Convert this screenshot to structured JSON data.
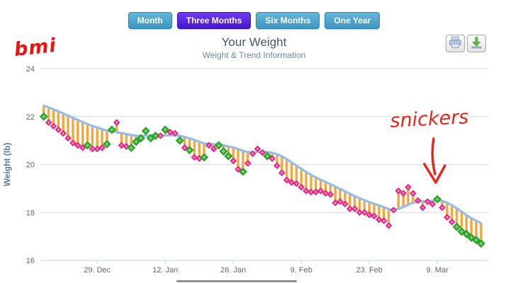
{
  "header": {
    "logo_text": "bmi",
    "title": "Your Weight",
    "subtitle": "Weight & Trend Information"
  },
  "range_buttons": [
    {
      "label": "Month",
      "active": false
    },
    {
      "label": "Three Months",
      "active": true
    },
    {
      "label": "Six Months",
      "active": false
    },
    {
      "label": "One Year",
      "active": false
    }
  ],
  "toolbar": {
    "print_icon": "printer",
    "download_icon": "download"
  },
  "annotation": {
    "text": "snickers",
    "points_to_date": "Mar 9"
  },
  "chart_data": {
    "type": "line",
    "title": "Your Weight",
    "subtitle": "Weight & Trend Information",
    "xlabel": "",
    "ylabel": "Weight (lb)",
    "ylim": [
      16,
      24
    ],
    "yticks": [
      16,
      18,
      20,
      22,
      24
    ],
    "grid": true,
    "legend": false,
    "xticks": [
      {
        "label": "29. Dec",
        "day_index": 11
      },
      {
        "label": "12. Jan",
        "day_index": 25
      },
      {
        "label": "26. Jan",
        "day_index": 39
      },
      {
        "label": "9. Feb",
        "day_index": 53
      },
      {
        "label": "23. Feb",
        "day_index": 67
      },
      {
        "label": "9. Mar",
        "day_index": 81
      }
    ],
    "x_dates": [
      "Dec 18",
      "Dec 19",
      "Dec 20",
      "Dec 21",
      "Dec 22",
      "Dec 23",
      "Dec 24",
      "Dec 25",
      "Dec 26",
      "Dec 27",
      "Dec 28",
      "Dec 29",
      "Dec 30",
      "Dec 31",
      "Jan 1",
      "Jan 2",
      "Jan 3",
      "Jan 4",
      "Jan 5",
      "Jan 6",
      "Jan 7",
      "Jan 8",
      "Jan 9",
      "Jan 10",
      "Jan 11",
      "Jan 12",
      "Jan 13",
      "Jan 14",
      "Jan 15",
      "Jan 16",
      "Jan 17",
      "Jan 18",
      "Jan 19",
      "Jan 20",
      "Jan 21",
      "Jan 22",
      "Jan 23",
      "Jan 24",
      "Jan 25",
      "Jan 26",
      "Jan 27",
      "Jan 28",
      "Jan 29",
      "Jan 30",
      "Jan 31",
      "Feb 1",
      "Feb 2",
      "Feb 3",
      "Feb 4",
      "Feb 5",
      "Feb 6",
      "Feb 7",
      "Feb 8",
      "Feb 9",
      "Feb 10",
      "Feb 11",
      "Feb 12",
      "Feb 13",
      "Feb 14",
      "Feb 15",
      "Feb 16",
      "Feb 17",
      "Feb 18",
      "Feb 19",
      "Feb 20",
      "Feb 21",
      "Feb 22",
      "Feb 23",
      "Feb 24",
      "Feb 25",
      "Feb 26",
      "Feb 27",
      "Feb 28",
      "Mar 1",
      "Mar 2",
      "Mar 3",
      "Mar 4",
      "Mar 5",
      "Mar 6",
      "Mar 7",
      "Mar 8",
      "Mar 9",
      "Mar 10",
      "Mar 11",
      "Mar 12",
      "Mar 13",
      "Mar 14",
      "Mar 15",
      "Mar 16",
      "Mar 17",
      "Mar 18"
    ],
    "series": [
      {
        "name": "daily-weight",
        "type": "scatter",
        "values": [
          22.0,
          21.75,
          21.6,
          21.45,
          21.3,
          21.1,
          20.9,
          20.8,
          20.7,
          20.8,
          20.65,
          20.65,
          20.7,
          20.85,
          21.45,
          21.75,
          20.8,
          20.75,
          20.7,
          20.95,
          21.1,
          21.4,
          21.1,
          21.2,
          21.2,
          21.45,
          21.35,
          21.3,
          21.0,
          20.7,
          20.6,
          20.3,
          20.25,
          20.3,
          20.8,
          20.65,
          20.8,
          20.55,
          20.35,
          20.15,
          19.8,
          19.7,
          20.05,
          20.45,
          20.65,
          20.5,
          20.35,
          20.25,
          19.95,
          19.65,
          19.35,
          19.25,
          19.2,
          19.05,
          18.9,
          18.85,
          18.85,
          18.9,
          18.8,
          18.75,
          18.4,
          18.45,
          18.35,
          18.15,
          18.15,
          18.0,
          18.0,
          17.9,
          17.85,
          17.7,
          17.65,
          17.45,
          18.1,
          18.9,
          18.8,
          19.05,
          18.8,
          18.5,
          18.2,
          18.45,
          18.35,
          18.55,
          18.2,
          17.8,
          17.6,
          17.4,
          17.2,
          17.1,
          16.95,
          16.85,
          16.7
        ],
        "point_colors": [
          "g",
          "p",
          "p",
          "p",
          "p",
          "p",
          "p",
          "p",
          "p",
          "g",
          "p",
          "p",
          "p",
          "g",
          "g",
          "p",
          "p",
          "p",
          "g",
          "g",
          "g",
          "g",
          "g",
          "g",
          "p",
          "g",
          "p",
          "p",
          "g",
          "p",
          "g",
          "p",
          "p",
          "g",
          "p",
          "p",
          "g",
          "g",
          "g",
          "p",
          "p",
          "g",
          "p",
          "p",
          "p",
          "p",
          "g",
          "p",
          "p",
          "p",
          "p",
          "p",
          "p",
          "p",
          "p",
          "p",
          "p",
          "p",
          "p",
          "p",
          "p",
          "p",
          "p",
          "p",
          "p",
          "p",
          "p",
          "p",
          "p",
          "p",
          "p",
          "p",
          "p",
          "p",
          "p",
          "p",
          "p",
          "p",
          "p",
          "p",
          "p",
          "g",
          "p",
          "p",
          "p",
          "g",
          "g",
          "g",
          "g",
          "g",
          "g"
        ]
      },
      {
        "name": "trend",
        "type": "line",
        "values": [
          22.45,
          22.38,
          22.3,
          22.22,
          22.13,
          22.04,
          21.95,
          21.86,
          21.77,
          21.69,
          21.61,
          21.54,
          21.47,
          21.41,
          21.37,
          21.35,
          21.31,
          21.27,
          21.23,
          21.2,
          21.19,
          21.2,
          21.2,
          21.2,
          21.2,
          21.21,
          21.22,
          21.22,
          21.2,
          21.15,
          21.09,
          21.02,
          20.95,
          20.88,
          20.86,
          20.84,
          20.83,
          20.8,
          20.76,
          20.71,
          20.64,
          20.57,
          20.52,
          20.51,
          20.52,
          20.53,
          20.52,
          20.49,
          20.43,
          20.34,
          20.22,
          20.09,
          19.95,
          19.82,
          19.69,
          19.57,
          19.46,
          19.36,
          19.27,
          19.18,
          19.08,
          18.98,
          18.88,
          18.78,
          18.68,
          18.59,
          18.51,
          18.43,
          18.36,
          18.29,
          18.22,
          18.14,
          18.1,
          18.15,
          18.23,
          18.32,
          18.4,
          18.45,
          18.46,
          18.47,
          18.48,
          18.5,
          18.48,
          18.41,
          18.3,
          18.17,
          18.03,
          17.89,
          17.76,
          17.65,
          17.55
        ]
      }
    ],
    "float_lines": {
      "connects": "daily-weight-to-trend",
      "color": "#f5a63b"
    },
    "palette": {
      "point_pink": "#e91e7d",
      "point_pink_cross": "#ff9ec9",
      "point_green": "#28a228",
      "point_green_cross": "#90d890",
      "trend_line": "#93bde8",
      "float_line": "#f5a63b",
      "gridline": "#d9d9d9",
      "axis_line": "#c0d0e0",
      "tick_label": "#666666",
      "axis_title": "#5578a8",
      "annotation_red": "#e8271c"
    }
  }
}
